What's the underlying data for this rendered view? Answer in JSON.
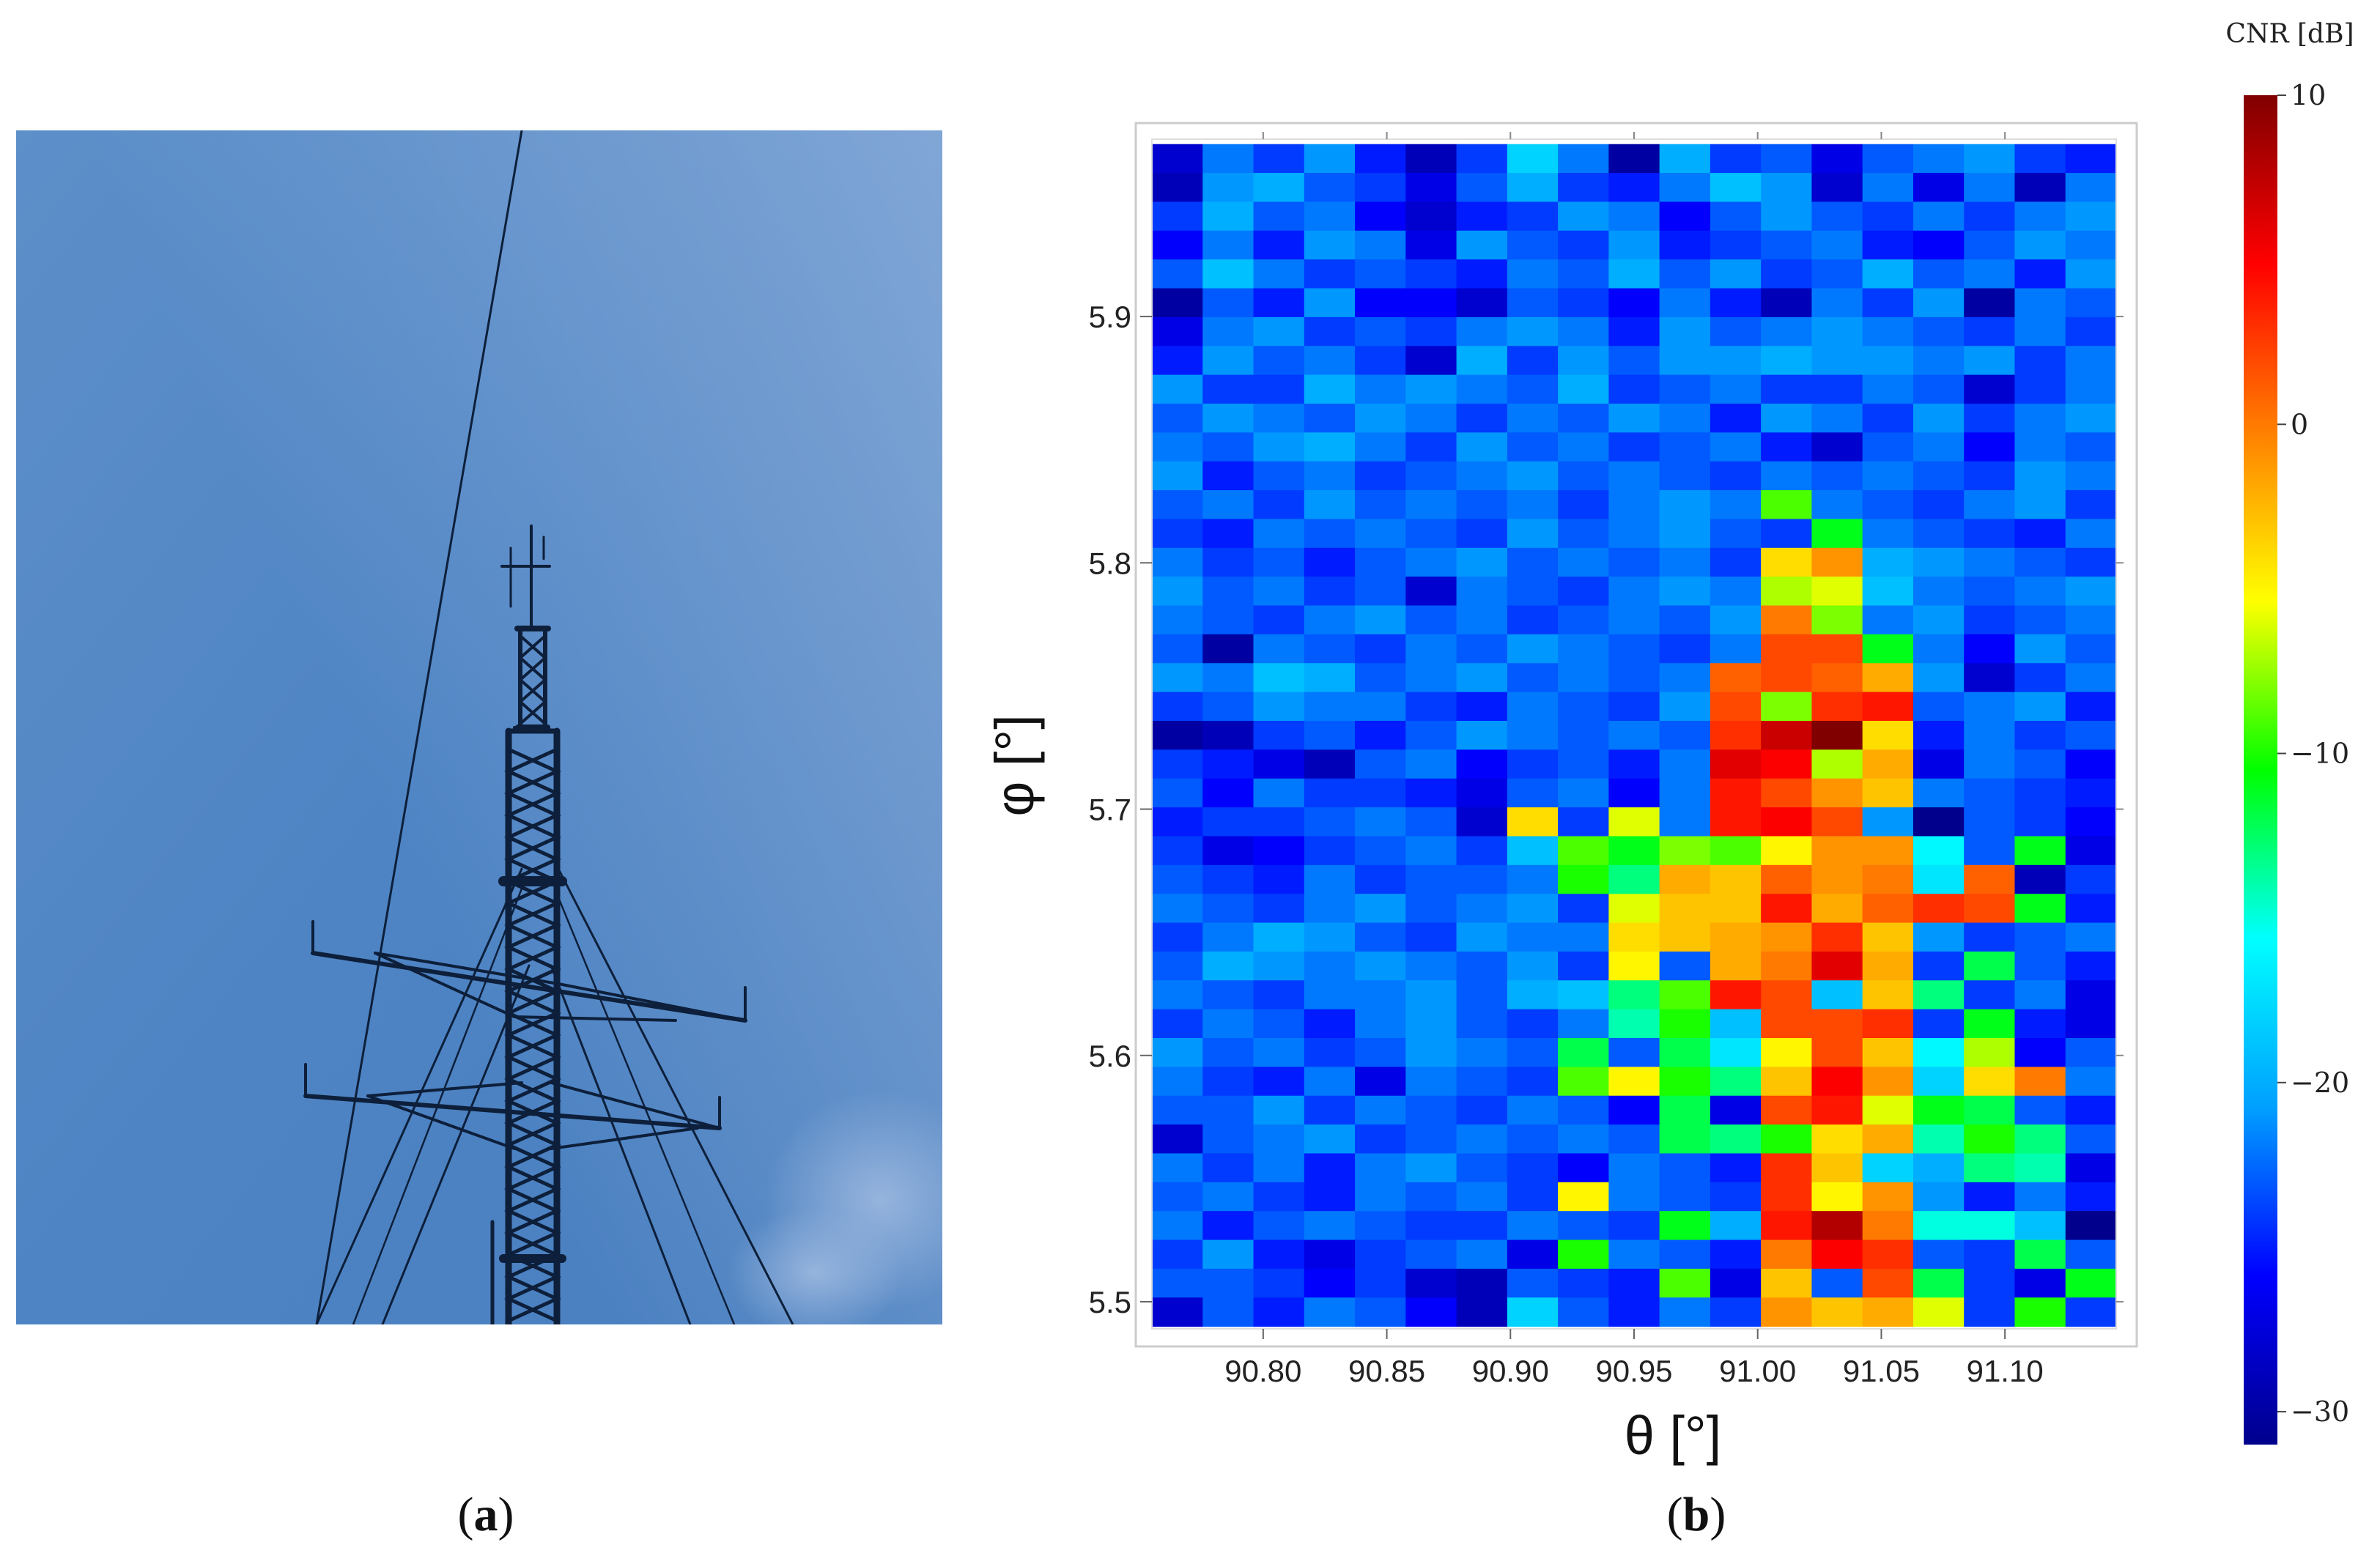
{
  "captions": {
    "a": "a",
    "b": "b"
  },
  "chart_data": {
    "type": "heatmap",
    "xlabel": "θ [°]",
    "ylabel": "φ [°]",
    "x_ticks": [
      "90.80",
      "90.85",
      "90.90",
      "90.95",
      "91.00",
      "91.05",
      "91.10"
    ],
    "x_tick_values": [
      90.8,
      90.85,
      90.9,
      90.95,
      91.0,
      91.05,
      91.1
    ],
    "y_ticks": [
      "5.5",
      "5.6",
      "5.7",
      "5.8",
      "5.9"
    ],
    "y_tick_values": [
      5.5,
      5.6,
      5.7,
      5.8,
      5.9
    ],
    "xlim": [
      90.755,
      91.145
    ],
    "ylim": [
      5.489,
      5.972
    ],
    "theta_range": [
      90.755,
      91.145
    ],
    "phi_range": [
      5.49,
      5.97
    ],
    "colorbar": {
      "title": "CNR [dB]",
      "range": [
        -31,
        10
      ],
      "ticks": [
        "10",
        "0",
        "−10",
        "−20",
        "−30"
      ],
      "tick_values": [
        10,
        0,
        -10,
        -20,
        -30
      ],
      "colormap": [
        "#00008c",
        "#0000ff",
        "#00a0ff",
        "#00ffff",
        "#00ff00",
        "#ffff00",
        "#ff8000",
        "#ff0000",
        "#800000"
      ]
    },
    "grid_note": "rows listed top (φ=5.97) to bottom (φ=5.49); columns left (θ=90.755) to right (θ=91.145); values in dB",
    "values": [
      [
        -28,
        -22,
        -24,
        -21,
        -25,
        -29,
        -24,
        -18,
        -22,
        -30,
        -20,
        -24,
        -23,
        -27,
        -23,
        -22,
        -21,
        -24,
        -25
      ],
      [
        -29,
        -21,
        -20,
        -23,
        -24,
        -27,
        -23,
        -20,
        -24,
        -25,
        -22,
        -19,
        -21,
        -28,
        -22,
        -27,
        -22,
        -29,
        -22
      ],
      [
        -24,
        -20,
        -23,
        -22,
        -26,
        -28,
        -25,
        -24,
        -21,
        -22,
        -26,
        -23,
        -21,
        -23,
        -24,
        -22,
        -24,
        -22,
        -21
      ],
      [
        -26,
        -22,
        -25,
        -21,
        -22,
        -27,
        -21,
        -23,
        -24,
        -21,
        -25,
        -24,
        -23,
        -22,
        -25,
        -26,
        -23,
        -21,
        -22
      ],
      [
        -23,
        -19,
        -22,
        -24,
        -23,
        -24,
        -25,
        -22,
        -23,
        -20,
        -23,
        -21,
        -24,
        -23,
        -20,
        -23,
        -22,
        -25,
        -21
      ],
      [
        -30,
        -23,
        -25,
        -21,
        -26,
        -26,
        -28,
        -23,
        -24,
        -26,
        -22,
        -25,
        -29,
        -22,
        -24,
        -21,
        -30,
        -22,
        -23
      ],
      [
        -27,
        -22,
        -21,
        -24,
        -23,
        -24,
        -22,
        -21,
        -22,
        -25,
        -21,
        -23,
        -22,
        -21,
        -22,
        -23,
        -24,
        -22,
        -24
      ],
      [
        -25,
        -21,
        -23,
        -22,
        -24,
        -28,
        -20,
        -24,
        -21,
        -23,
        -21,
        -21,
        -20,
        -21,
        -21,
        -22,
        -21,
        -24,
        -22
      ],
      [
        -21,
        -24,
        -24,
        -20,
        -22,
        -21,
        -22,
        -23,
        -20,
        -24,
        -23,
        -22,
        -24,
        -24,
        -22,
        -23,
        -28,
        -24,
        -22
      ],
      [
        -23,
        -21,
        -22,
        -23,
        -21,
        -22,
        -24,
        -22,
        -23,
        -21,
        -22,
        -25,
        -21,
        -22,
        -24,
        -21,
        -24,
        -22,
        -21
      ],
      [
        -22,
        -23,
        -21,
        -20,
        -22,
        -24,
        -21,
        -23,
        -22,
        -24,
        -23,
        -22,
        -25,
        -28,
        -23,
        -22,
        -26,
        -22,
        -23
      ],
      [
        -21,
        -25,
        -23,
        -22,
        -24,
        -23,
        -22,
        -21,
        -23,
        -22,
        -23,
        -24,
        -22,
        -23,
        -22,
        -23,
        -24,
        -21,
        -22
      ],
      [
        -23,
        -22,
        -24,
        -21,
        -23,
        -22,
        -23,
        -22,
        -24,
        -22,
        -21,
        -22,
        -9,
        -22,
        -23,
        -24,
        -22,
        -21,
        -24
      ],
      [
        -24,
        -25,
        -22,
        -23,
        -22,
        -23,
        -24,
        -21,
        -23,
        -22,
        -21,
        -23,
        -24,
        -11,
        -22,
        -23,
        -24,
        -25,
        -22
      ],
      [
        -22,
        -24,
        -23,
        -25,
        -23,
        -22,
        -21,
        -23,
        -22,
        -23,
        -22,
        -24,
        -4,
        -1,
        -20,
        -21,
        -22,
        -23,
        -24
      ],
      [
        -21,
        -23,
        -22,
        -24,
        -23,
        -28,
        -22,
        -23,
        -24,
        -22,
        -21,
        -22,
        -7,
        -6,
        -19,
        -22,
        -23,
        -22,
        -21
      ],
      [
        -22,
        -23,
        -24,
        -22,
        -21,
        -23,
        -22,
        -24,
        -23,
        -22,
        -23,
        -21,
        0,
        -8,
        -22,
        -21,
        -24,
        -23,
        -22
      ],
      [
        -23,
        -30,
        -22,
        -23,
        -24,
        -22,
        -23,
        -21,
        -22,
        -23,
        -24,
        -22,
        2,
        2,
        -11,
        -22,
        -26,
        -21,
        -23
      ],
      [
        -21,
        -22,
        -19,
        -20,
        -23,
        -22,
        -21,
        -23,
        -22,
        -23,
        -22,
        1,
        2,
        1,
        -2,
        -21,
        -28,
        -24,
        -22
      ],
      [
        -24,
        -23,
        -21,
        -22,
        -22,
        -24,
        -25,
        -22,
        -23,
        -24,
        -21,
        2,
        -8,
        3,
        4,
        -23,
        -22,
        -21,
        -25
      ],
      [
        -30,
        -29,
        -24,
        -23,
        -25,
        -23,
        -21,
        -22,
        -23,
        -22,
        -23,
        3,
        7,
        10,
        -4,
        -25,
        -22,
        -24,
        -23
      ],
      [
        -24,
        -25,
        -27,
        -29,
        -23,
        -22,
        -26,
        -24,
        -23,
        -25,
        -22,
        6,
        5,
        -7,
        -2,
        -27,
        -22,
        -23,
        -26
      ],
      [
        -23,
        -26,
        -22,
        -24,
        -24,
        -25,
        -27,
        -23,
        -22,
        -26,
        -22,
        4,
        2,
        -1,
        -3,
        -22,
        -23,
        -24,
        -25
      ],
      [
        -25,
        -24,
        -24,
        -23,
        -22,
        -23,
        -28,
        -4,
        -24,
        -6,
        -22,
        4,
        5,
        2,
        -21,
        -32,
        -23,
        -24,
        -26
      ],
      [
        -24,
        -27,
        -26,
        -24,
        -23,
        -22,
        -24,
        -19,
        -9,
        -11,
        -8,
        -9,
        -5,
        -1,
        -1,
        -16,
        -23,
        -11,
        -27
      ],
      [
        -23,
        -24,
        -25,
        -22,
        -24,
        -23,
        -23,
        -22,
        -10,
        -13,
        -2,
        -3,
        1,
        -1,
        0,
        -17,
        1,
        -29,
        -24
      ],
      [
        -22,
        -23,
        -24,
        -22,
        -21,
        -23,
        -22,
        -21,
        -24,
        -6,
        -3,
        -3,
        4,
        -2,
        1,
        3,
        2,
        -11,
        -25
      ],
      [
        -24,
        -22,
        -20,
        -21,
        -23,
        -24,
        -21,
        -22,
        -22,
        -4,
        -3,
        -2,
        -1,
        3,
        -3,
        -21,
        -24,
        -23,
        -22
      ],
      [
        -23,
        -20,
        -21,
        -22,
        -21,
        -22,
        -23,
        -21,
        -24,
        -5,
        -23,
        -2,
        0,
        6,
        -2,
        -24,
        -12,
        -23,
        -25
      ],
      [
        -22,
        -23,
        -24,
        -22,
        -22,
        -21,
        -23,
        -20,
        -19,
        -13,
        -9,
        4,
        2,
        -19,
        -3,
        -13,
        -24,
        -22,
        -27
      ],
      [
        -24,
        -22,
        -23,
        -25,
        -22,
        -21,
        -23,
        -24,
        -22,
        -14,
        -10,
        -19,
        2,
        2,
        3,
        -24,
        -11,
        -25,
        -27
      ],
      [
        -21,
        -23,
        -22,
        -24,
        -23,
        -21,
        -22,
        -23,
        -12,
        -23,
        -12,
        -17,
        -5,
        2,
        -3,
        -16,
        -7,
        -26,
        -23
      ],
      [
        -22,
        -24,
        -25,
        -22,
        -27,
        -22,
        -23,
        -24,
        -9,
        -5,
        -10,
        -13,
        -3,
        5,
        -1,
        -18,
        -4,
        0,
        -22
      ],
      [
        -23,
        -23,
        -21,
        -24,
        -22,
        -23,
        -24,
        -22,
        -23,
        -26,
        -12,
        -27,
        2,
        4,
        -6,
        -11,
        -12,
        -23,
        -25
      ],
      [
        -28,
        -23,
        -22,
        -21,
        -24,
        -23,
        -22,
        -23,
        -22,
        -23,
        -12,
        -13,
        -10,
        -4,
        -2,
        -14,
        -10,
        -13,
        -23
      ],
      [
        -22,
        -24,
        -22,
        -25,
        -22,
        -21,
        -23,
        -24,
        -26,
        -22,
        -23,
        -25,
        3,
        -3,
        -18,
        -20,
        -13,
        -14,
        -27
      ],
      [
        -23,
        -22,
        -24,
        -25,
        -22,
        -23,
        -22,
        -24,
        -5,
        -22,
        -23,
        -24,
        3,
        -5,
        -1,
        -21,
        -25,
        -22,
        -25
      ],
      [
        -22,
        -25,
        -23,
        -22,
        -23,
        -24,
        -24,
        -22,
        -23,
        -24,
        -11,
        -20,
        4,
        8,
        0,
        -15,
        -15,
        -19,
        -31
      ],
      [
        -24,
        -21,
        -25,
        -27,
        -24,
        -23,
        -22,
        -27,
        -10,
        -22,
        -23,
        -25,
        0,
        5,
        3,
        -23,
        -24,
        -12,
        -23
      ],
      [
        -23,
        -23,
        -24,
        -26,
        -24,
        -28,
        -29,
        -23,
        -24,
        -25,
        -9,
        -27,
        -3,
        -23,
        2,
        -12,
        -24,
        -27,
        -11
      ],
      [
        -28,
        -23,
        -25,
        -22,
        -23,
        -26,
        -29,
        -18,
        -23,
        -25,
        -22,
        -24,
        -1,
        -3,
        -2,
        -6,
        -24,
        -10,
        -24
      ]
    ]
  }
}
